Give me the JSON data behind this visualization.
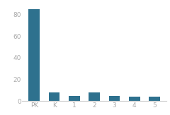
{
  "categories": [
    "PK",
    "K",
    "1",
    "2",
    "3",
    "4",
    "5"
  ],
  "values": [
    85,
    8,
    5,
    8,
    5,
    4,
    4
  ],
  "bar_color": "#2e718e",
  "ylim": [
    0,
    90
  ],
  "yticks": [
    0,
    20,
    40,
    60,
    80
  ],
  "background_color": "#ffffff",
  "tick_fontsize": 6.5,
  "bar_width": 0.55
}
